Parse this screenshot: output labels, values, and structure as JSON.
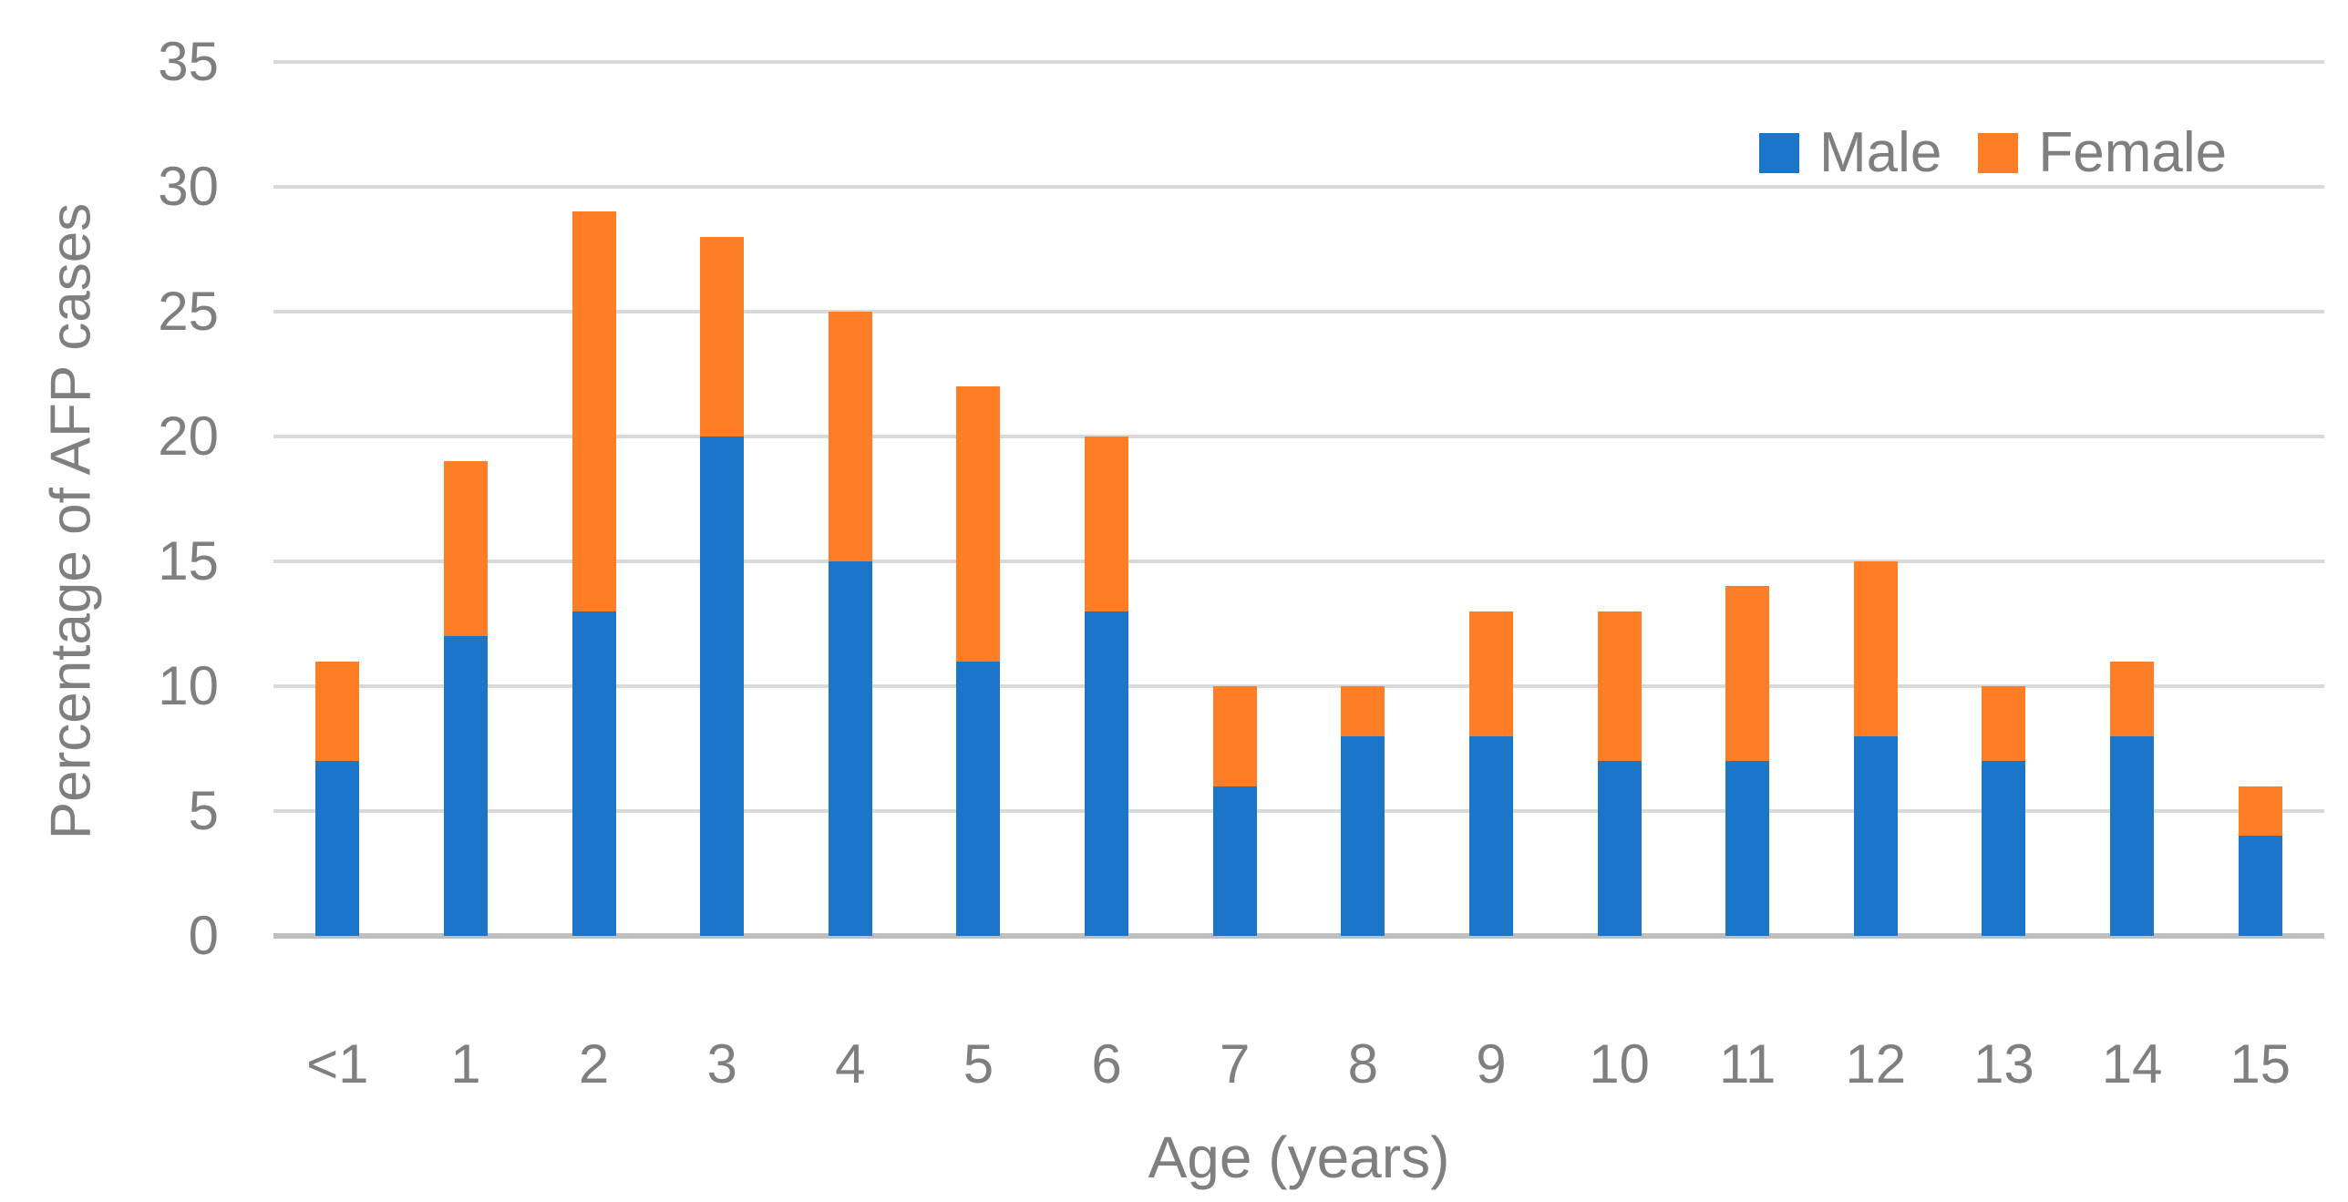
{
  "chart_data": {
    "type": "bar",
    "stacked": true,
    "title": "",
    "xlabel": "Age (years)",
    "ylabel": "Percentage of AFP cases",
    "categories": [
      "<1",
      "1",
      "2",
      "3",
      "4",
      "5",
      "6",
      "7",
      "8",
      "9",
      "10",
      "11",
      "12",
      "13",
      "14",
      "15"
    ],
    "series": [
      {
        "name": "Male",
        "color": "#1B75C8",
        "values": [
          7,
          12,
          13,
          20,
          15,
          11,
          13,
          6,
          8,
          8,
          7,
          7,
          8,
          7,
          8,
          4
        ]
      },
      {
        "name": "Female",
        "color": "#FD7E26",
        "values": [
          4,
          7,
          16,
          8,
          10,
          11,
          7,
          4,
          2,
          5,
          6,
          7,
          7,
          3,
          3,
          2
        ]
      }
    ],
    "ylim": [
      0,
      35
    ],
    "ytick_interval": 5,
    "y_tick_labels": [
      "0",
      "5",
      "10",
      "15",
      "20",
      "25",
      "30",
      "35"
    ],
    "grid": true,
    "legend_position": "top-right",
    "style_colors": {
      "gridline": "#D9D9D9",
      "axis_line": "#BFBFBF",
      "text": "#7F7F7F",
      "background": "#FFFFFF"
    }
  }
}
